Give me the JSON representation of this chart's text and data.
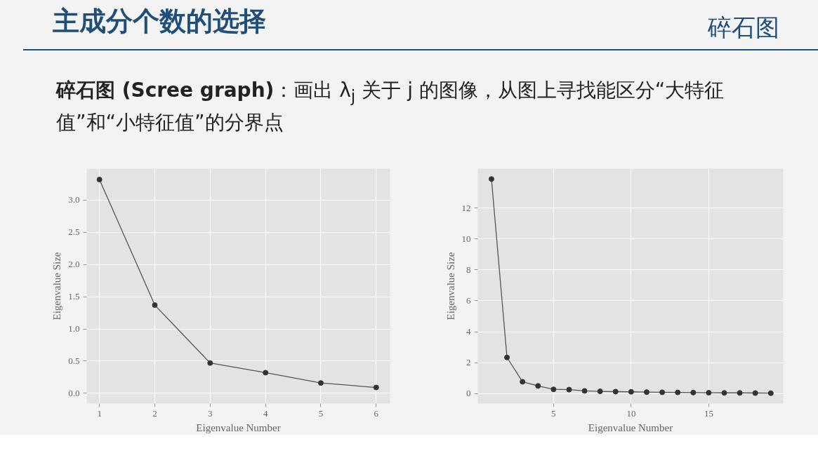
{
  "chart_data": [
    {
      "type": "line",
      "title": "主成分个数的选择",
      "annotations": [
        "碎石图",
        "碎石图 (Scree graph)：画出 λ$_{j}$ 关于 j 的图像，从图上寻找能区分“大特征值”和“小特征值”的分界点"
      ],
      "xlabel": "Eigenvalue Number",
      "ylabel": "Eigenvalue Size",
      "x": [
        1,
        2,
        3,
        4,
        5,
        6
      ],
      "series": [
        {
          "color": "#555555",
          "values": [
            3.32,
            1.37,
            0.47,
            0.32,
            0.16,
            0.09
          ]
        }
      ],
      "xlim": [
        0.77,
        6.25
      ],
      "ylim": [
        -0.16,
        3.49
      ],
      "xticks": [
        1,
        2,
        3,
        4,
        5,
        6
      ],
      "yticks": [
        {
          "value": 0,
          "label": "0.0"
        },
        0.5,
        {
          "value": 1,
          "label": "1.0"
        },
        1.5,
        {
          "value": 2,
          "label": "2.0"
        },
        2.5,
        {
          "value": 3,
          "label": "3.0"
        }
      ],
      "grid": true,
      "marker": "circle",
      "line_style": "solid"
    },
    {
      "type": "line",
      "xlabel": "Eigenvalue Number",
      "ylabel": "Eigenvalue Size",
      "x": [
        1,
        2,
        3,
        4,
        5,
        6,
        7,
        8,
        9,
        10,
        11,
        12,
        13,
        14,
        15,
        16,
        17,
        18,
        19
      ],
      "series": [
        {
          "color": "#555555",
          "values": [
            13.87,
            2.34,
            0.77,
            0.5,
            0.28,
            0.26,
            0.18,
            0.15,
            0.13,
            0.12,
            0.1,
            0.09,
            0.08,
            0.07,
            0.06,
            0.05,
            0.05,
            0.04,
            0.03
          ]
        }
      ],
      "xlim": [
        0.12,
        19.8
      ],
      "ylim": [
        -0.64,
        14.54
      ],
      "xticks": [
        5,
        10,
        15
      ],
      "yticks": [
        0,
        2,
        4,
        6,
        8,
        10,
        12
      ],
      "grid": true,
      "marker": "circle",
      "line_style": "solid"
    }
  ]
}
